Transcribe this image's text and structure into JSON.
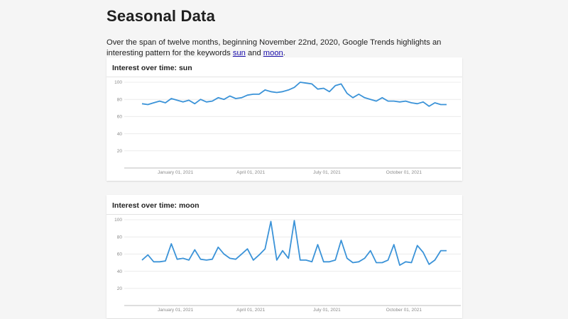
{
  "page": {
    "title": "Seasonal Data",
    "intro_before": "Over the span of twelve months, beginning November 22nd, 2020, Google Trends highlights an interesting pattern for the keywords ",
    "link_sun": "sun",
    "intro_middle": " and ",
    "link_moon": "moon",
    "intro_after": "."
  },
  "colors": {
    "line": "#3b93d8",
    "grid": "#ececec",
    "axis": "#c9c9c9"
  },
  "chart_data": [
    {
      "type": "line",
      "title": "Interest over time: sun",
      "ylim": [
        0,
        100
      ],
      "yticks": [
        20,
        40,
        60,
        80,
        100
      ],
      "grid": true,
      "x_start": "2020-11-22",
      "x_end": "2021-11-21",
      "xticks": [
        {
          "date": "2021-01-01",
          "label": "January 01, 2021"
        },
        {
          "date": "2021-04-01",
          "label": "April 01, 2021"
        },
        {
          "date": "2021-07-01",
          "label": "July 01, 2021"
        },
        {
          "date": "2021-10-01",
          "label": "October 01, 2021"
        }
      ],
      "series": [
        {
          "x": [
            "2020-11-22",
            "2020-11-29",
            "2020-12-06",
            "2020-12-13",
            "2020-12-20",
            "2020-12-27",
            "2021-01-03",
            "2021-01-10",
            "2021-01-17",
            "2021-01-24",
            "2021-01-31",
            "2021-02-07",
            "2021-02-14",
            "2021-02-21",
            "2021-02-28",
            "2021-03-07",
            "2021-03-14",
            "2021-03-21",
            "2021-03-28",
            "2021-04-04",
            "2021-04-11",
            "2021-04-18",
            "2021-04-25",
            "2021-05-02",
            "2021-05-09",
            "2021-05-16",
            "2021-05-23",
            "2021-05-30",
            "2021-06-06",
            "2021-06-13",
            "2021-06-20",
            "2021-06-27",
            "2021-07-04",
            "2021-07-11",
            "2021-07-18",
            "2021-07-25",
            "2021-08-01",
            "2021-08-08",
            "2021-08-15",
            "2021-08-22",
            "2021-08-29",
            "2021-09-05",
            "2021-09-12",
            "2021-09-19",
            "2021-09-26",
            "2021-10-03",
            "2021-10-10",
            "2021-10-17",
            "2021-10-24",
            "2021-10-31",
            "2021-11-07",
            "2021-11-14",
            "2021-11-21"
          ],
          "values": [
            75,
            74,
            76,
            78,
            76,
            81,
            79,
            77,
            79,
            75,
            80,
            77,
            78,
            82,
            80,
            84,
            81,
            82,
            85,
            86,
            86,
            91,
            89,
            88,
            89,
            91,
            94,
            100,
            99,
            98,
            92,
            93,
            89,
            96,
            98,
            87,
            82,
            86,
            82,
            80,
            78,
            82,
            78,
            78,
            77,
            78,
            76,
            75,
            77,
            72,
            76,
            74,
            74
          ]
        }
      ]
    },
    {
      "type": "line",
      "title": "Interest over time: moon",
      "ylim": [
        0,
        100
      ],
      "yticks": [
        20,
        40,
        60,
        80,
        100
      ],
      "grid": true,
      "x_start": "2020-11-22",
      "x_end": "2021-11-21",
      "xticks": [
        {
          "date": "2021-01-01",
          "label": "January 01, 2021"
        },
        {
          "date": "2021-04-01",
          "label": "April 01, 2021"
        },
        {
          "date": "2021-07-01",
          "label": "July 01, 2021"
        },
        {
          "date": "2021-10-01",
          "label": "October 01, 2021"
        }
      ],
      "series": [
        {
          "x": [
            "2020-11-22",
            "2020-11-29",
            "2020-12-06",
            "2020-12-13",
            "2020-12-20",
            "2020-12-27",
            "2021-01-03",
            "2021-01-10",
            "2021-01-17",
            "2021-01-24",
            "2021-01-31",
            "2021-02-07",
            "2021-02-14",
            "2021-02-21",
            "2021-02-28",
            "2021-03-07",
            "2021-03-14",
            "2021-03-21",
            "2021-03-28",
            "2021-04-04",
            "2021-04-11",
            "2021-04-18",
            "2021-04-25",
            "2021-05-02",
            "2021-05-09",
            "2021-05-16",
            "2021-05-23",
            "2021-05-30",
            "2021-06-06",
            "2021-06-13",
            "2021-06-20",
            "2021-06-27",
            "2021-07-04",
            "2021-07-11",
            "2021-07-18",
            "2021-07-25",
            "2021-08-01",
            "2021-08-08",
            "2021-08-15",
            "2021-08-22",
            "2021-08-29",
            "2021-09-05",
            "2021-09-12",
            "2021-09-19",
            "2021-09-26",
            "2021-10-03",
            "2021-10-10",
            "2021-10-17",
            "2021-10-24",
            "2021-10-31",
            "2021-11-07",
            "2021-11-14",
            "2021-11-21"
          ],
          "values": [
            53,
            59,
            51,
            51,
            52,
            72,
            54,
            55,
            53,
            65,
            54,
            53,
            54,
            68,
            60,
            55,
            54,
            60,
            66,
            53,
            59,
            66,
            98,
            53,
            64,
            55,
            99,
            53,
            53,
            51,
            71,
            51,
            51,
            53,
            76,
            55,
            50,
            51,
            55,
            64,
            50,
            50,
            53,
            71,
            47,
            51,
            50,
            70,
            62,
            48,
            53,
            64,
            64
          ]
        }
      ]
    }
  ]
}
